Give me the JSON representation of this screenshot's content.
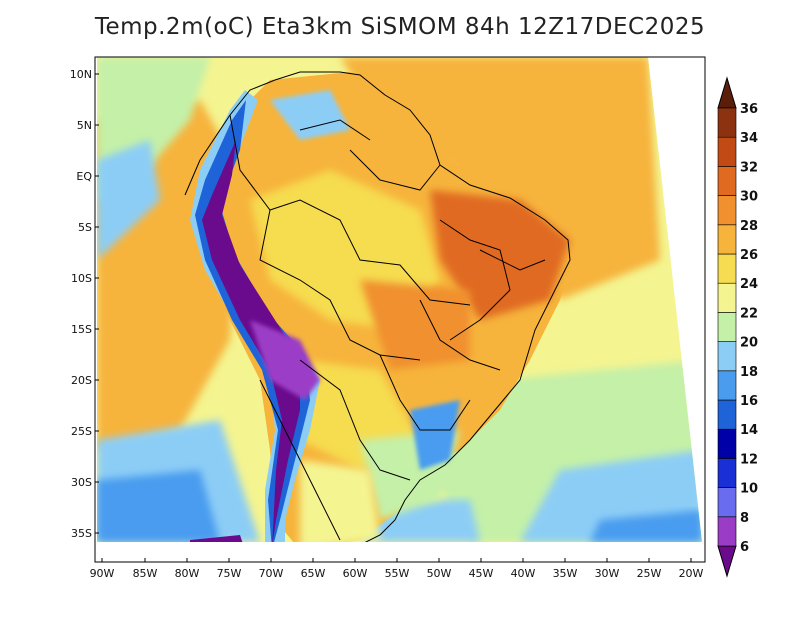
{
  "title": "Temp.2m(oC) Eta3km SiSMOM 84h 12Z17DEC2025",
  "lat_labels": [
    "10N",
    "5N",
    "EQ",
    "5S",
    "10S",
    "15S",
    "20S",
    "25S",
    "30S",
    "35S"
  ],
  "lon_labels": [
    "90W",
    "85W",
    "80W",
    "75W",
    "70W",
    "65W",
    "60W",
    "55W",
    "50W",
    "45W",
    "40W",
    "35W",
    "30W",
    "25W",
    "20W"
  ],
  "colorbar": {
    "labels": [
      "6",
      "8",
      "10",
      "12",
      "14",
      "16",
      "18",
      "20",
      "22",
      "24",
      "26",
      "28",
      "30",
      "32",
      "34",
      "36"
    ],
    "colors": [
      "#6a0a8c",
      "#9b3cc6",
      "#6a6cf0",
      "#1a2fd6",
      "#0000a8",
      "#1e64d8",
      "#4a9cef",
      "#8ccdf6",
      "#c4f0a8",
      "#f4f490",
      "#f6dc50",
      "#f6b43c",
      "#f0902e",
      "#e06a20",
      "#c24a14",
      "#8c3210",
      "#5a1e0a"
    ]
  }
}
